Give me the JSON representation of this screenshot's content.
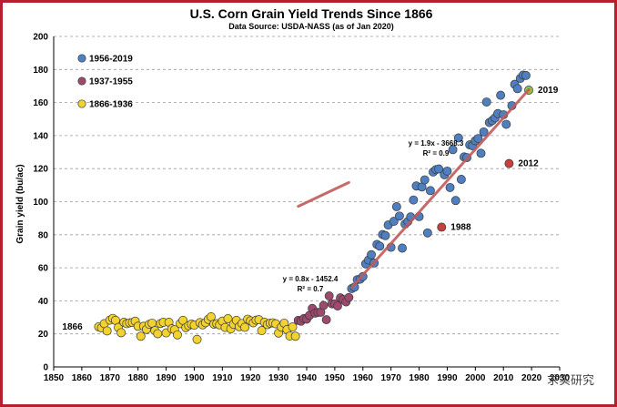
{
  "chart_data": {
    "type": "scatter",
    "title": "U.S. Corn Grain Yield Trends Since 1866",
    "subtitle": "Data Source: USDA-NASS (as of Jan 2020)",
    "ylabel": "Grain yield (bu/ac)",
    "xlabel": "",
    "xlim": [
      1850,
      2030
    ],
    "ylim": [
      0,
      200
    ],
    "x_ticks": [
      "1850",
      "1860",
      "1870",
      "1880",
      "1890",
      "1900",
      "1910",
      "1920",
      "1930",
      "1940",
      "1950",
      "1960",
      "1970",
      "1980",
      "1990",
      "2000",
      "2010",
      "2020",
      "2030"
    ],
    "y_ticks": [
      "0",
      "20",
      "40",
      "60",
      "80",
      "100",
      "120",
      "140",
      "160",
      "180",
      "200"
    ],
    "grid": true,
    "legend_position": "top-left",
    "colors": {
      "1866-1936": "#f2d22e",
      "1937-1955": "#9c4a6e",
      "1956-2019": "#4f7fc0",
      "highlight_2019": "#8fbf4a",
      "highlight_red": "#c8403a",
      "trend": "#c25a5a"
    },
    "series": [
      {
        "name": "1956-2019",
        "color": "#4f7fc0",
        "x": [
          1956,
          1957,
          1958,
          1959,
          1960,
          1961,
          1962,
          1963,
          1964,
          1965,
          1966,
          1967,
          1968,
          1969,
          1970,
          1971,
          1972,
          1973,
          1974,
          1975,
          1976,
          1977,
          1978,
          1979,
          1980,
          1981,
          1982,
          1983,
          1984,
          1985,
          1986,
          1987,
          1988,
          1989,
          1990,
          1991,
          1992,
          1993,
          1994,
          1995,
          1996,
          1997,
          1998,
          1999,
          2000,
          2001,
          2002,
          2003,
          2004,
          2005,
          2006,
          2007,
          2008,
          2009,
          2010,
          2011,
          2012,
          2013,
          2014,
          2015,
          2016,
          2017,
          2018,
          2019
        ],
        "y": [
          47.4,
          48.3,
          52.8,
          53.1,
          54.7,
          62.4,
          64.7,
          67.9,
          62.9,
          74.1,
          73.1,
          80.1,
          79.5,
          85.9,
          72.4,
          88.1,
          97.0,
          91.3,
          71.9,
          86.4,
          88.0,
          90.8,
          101.0,
          109.5,
          91.0,
          108.9,
          113.2,
          81.1,
          106.7,
          118.0,
          119.4,
          119.8,
          84.6,
          116.3,
          118.5,
          108.6,
          131.5,
          100.7,
          138.6,
          113.5,
          127.1,
          126.7,
          134.4,
          133.8,
          136.9,
          138.2,
          129.3,
          142.2,
          160.3,
          147.9,
          149.1,
          150.7,
          153.3,
          164.4,
          152.6,
          146.8,
          123.1,
          158.1,
          171.0,
          168.4,
          174.6,
          176.6,
          176.4,
          167.5
        ]
      },
      {
        "name": "1937-1955",
        "color": "#9c4a6e",
        "x": [
          1937,
          1938,
          1939,
          1940,
          1941,
          1942,
          1943,
          1944,
          1945,
          1946,
          1947,
          1948,
          1949,
          1950,
          1951,
          1952,
          1953,
          1954,
          1955
        ],
        "y": [
          28.2,
          27.7,
          29.3,
          28.9,
          31.2,
          35.4,
          32.6,
          33.0,
          33.1,
          37.2,
          28.6,
          43.0,
          38.2,
          38.2,
          36.9,
          41.8,
          40.7,
          39.4,
          42.0
        ]
      },
      {
        "name": "1866-1936",
        "color": "#f2d22e",
        "x": [
          1866,
          1867,
          1868,
          1869,
          1870,
          1871,
          1872,
          1873,
          1874,
          1875,
          1876,
          1877,
          1878,
          1879,
          1880,
          1881,
          1882,
          1883,
          1884,
          1885,
          1886,
          1887,
          1888,
          1889,
          1890,
          1891,
          1892,
          1893,
          1894,
          1895,
          1896,
          1897,
          1898,
          1899,
          1900,
          1901,
          1902,
          1903,
          1904,
          1905,
          1906,
          1907,
          1908,
          1909,
          1910,
          1911,
          1912,
          1913,
          1914,
          1915,
          1916,
          1917,
          1918,
          1919,
          1920,
          1921,
          1922,
          1923,
          1924,
          1925,
          1926,
          1927,
          1928,
          1929,
          1930,
          1931,
          1932,
          1933,
          1934,
          1935,
          1936
        ],
        "y": [
          24.3,
          23.6,
          26.2,
          21.8,
          28.3,
          29.4,
          28.2,
          23.9,
          20.7,
          27.0,
          26.2,
          26.7,
          26.9,
          27.7,
          24.6,
          18.6,
          24.6,
          22.7,
          25.8,
          26.5,
          22.0,
          20.1,
          26.3,
          27.0,
          20.6,
          27.0,
          23.1,
          22.5,
          19.4,
          26.2,
          28.2,
          23.8,
          25.0,
          25.9,
          25.3,
          16.7,
          26.8,
          25.5,
          26.8,
          28.8,
          30.3,
          25.9,
          26.2,
          25.5,
          27.7,
          23.9,
          29.2,
          23.1,
          25.8,
          28.2,
          24.4,
          26.3,
          24.0,
          28.9,
          27.9,
          26.7,
          28.3,
          28.6,
          22.0,
          27.0,
          25.6,
          26.5,
          26.7,
          26.1,
          20.5,
          24.1,
          26.5,
          22.6,
          18.7,
          24.2,
          18.6
        ]
      }
    ],
    "trendlines": [
      {
        "equation": "y = 0.8x - 1452.4",
        "r2": "R² = 0.7",
        "slope": 0.8,
        "intercept": -1452.4,
        "x_range": [
          1937,
          1955
        ]
      },
      {
        "equation": "y = 1.9x - 3668.3",
        "r2": "R² = 0.9",
        "slope": 1.9,
        "intercept": -3668.3,
        "x_range": [
          1956,
          2019
        ]
      }
    ],
    "annotations": [
      {
        "label": "1866",
        "x": 1866,
        "y": 24.3
      },
      {
        "label": "1988",
        "x": 1988,
        "y": 84.6
      },
      {
        "label": "2012",
        "x": 2012,
        "y": 123.1
      },
      {
        "label": "2019",
        "x": 2019,
        "y": 167.5
      }
    ],
    "highlight_points": [
      {
        "x": 1988,
        "y": 84.6,
        "color": "#c8403a"
      },
      {
        "x": 2012,
        "y": 123.1,
        "color": "#c8403a"
      },
      {
        "x": 2019,
        "y": 167.5,
        "color": "#8fbf4a"
      }
    ]
  },
  "watermark_text": "求实研究"
}
